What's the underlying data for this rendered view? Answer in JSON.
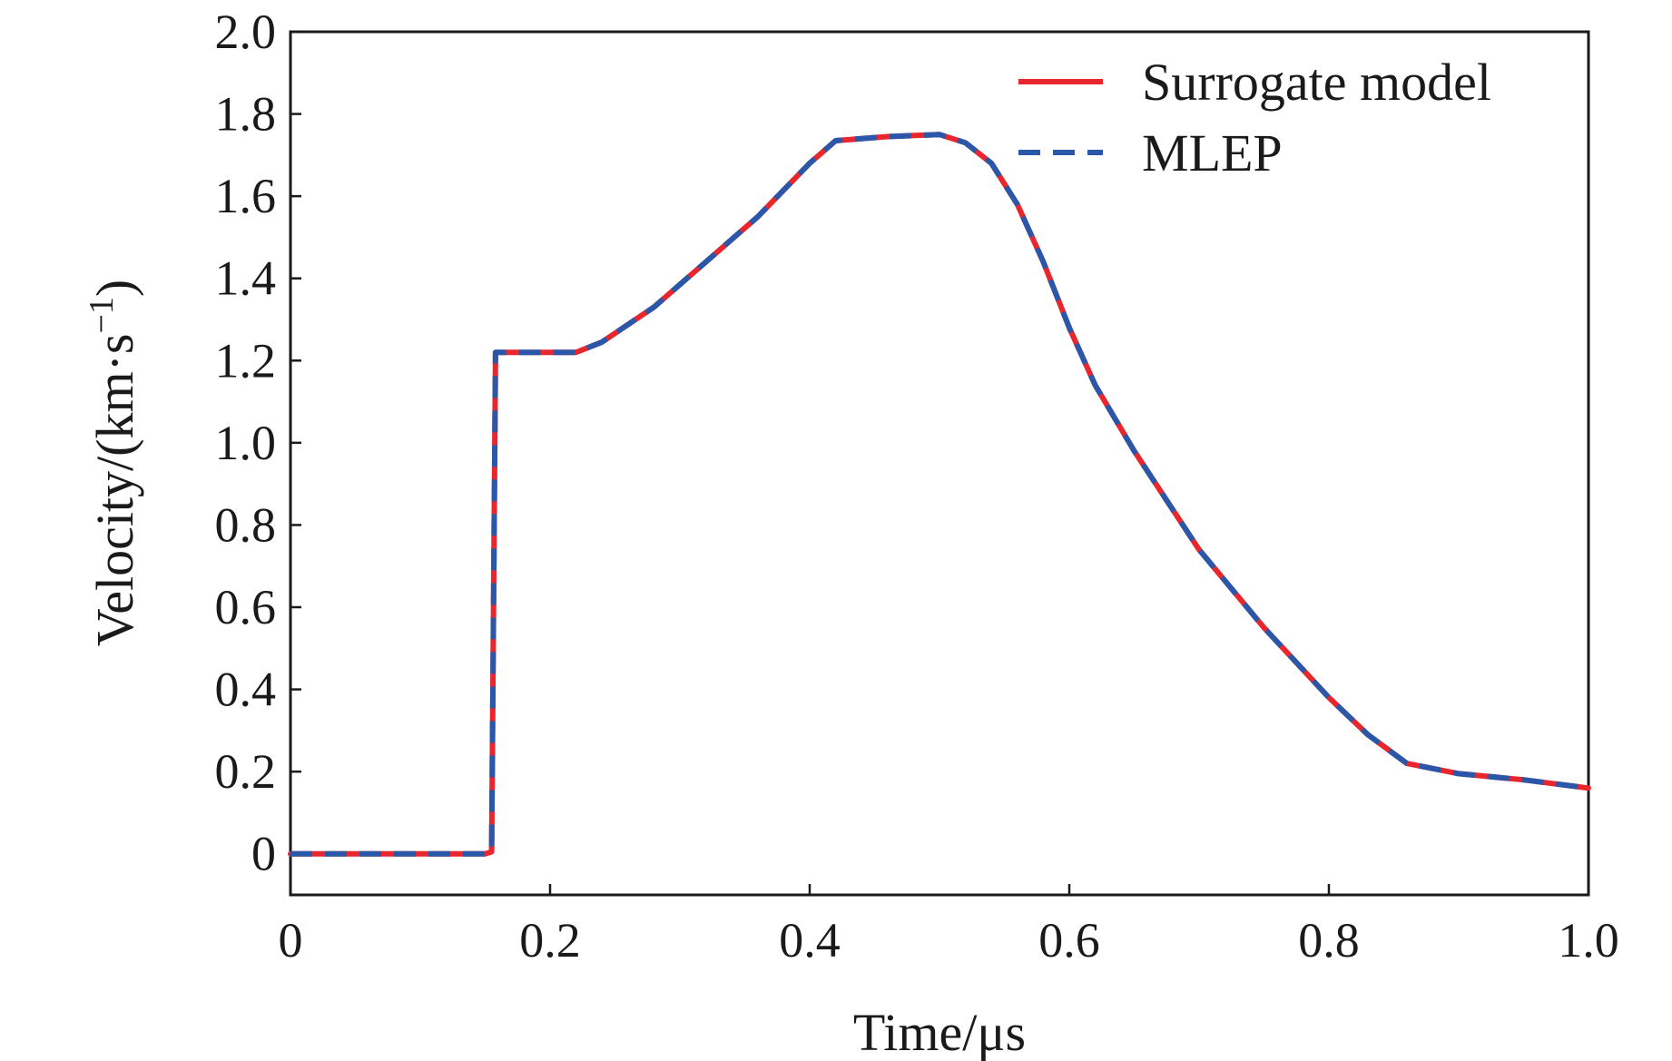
{
  "chart_data": {
    "type": "line",
    "title": "",
    "xlabel": "Time/μs",
    "ylabel": "Velocity/(km·s",
    "ylabel_sup": "−1",
    "ylabel_close": ")",
    "xlim": [
      0,
      1.0
    ],
    "ylim": [
      -0.1,
      2.0
    ],
    "xticks": [
      0,
      0.2,
      0.4,
      0.6,
      0.8,
      1.0
    ],
    "xtick_labels": [
      "0",
      "0.2",
      "0.4",
      "0.6",
      "0.8",
      "1.0"
    ],
    "yticks": [
      0,
      0.2,
      0.4,
      0.6,
      0.8,
      1.0,
      1.2,
      1.4,
      1.6,
      1.8,
      2.0
    ],
    "ytick_labels": [
      "0",
      "0.2",
      "0.4",
      "0.6",
      "0.8",
      "1.0",
      "1.2",
      "1.4",
      "1.6",
      "1.8",
      "2.0"
    ],
    "grid": false,
    "legend_position": "top-right",
    "series": [
      {
        "name": "Surrogate model",
        "color": "#e8262d",
        "style": "solid",
        "points": [
          [
            0,
            0
          ],
          [
            0.15,
            0
          ],
          [
            0.155,
            0.005
          ],
          [
            0.158,
            1.22
          ],
          [
            0.22,
            1.22
          ],
          [
            0.24,
            1.245
          ],
          [
            0.28,
            1.33
          ],
          [
            0.32,
            1.44
          ],
          [
            0.36,
            1.55
          ],
          [
            0.4,
            1.68
          ],
          [
            0.42,
            1.735
          ],
          [
            0.46,
            1.745
          ],
          [
            0.5,
            1.75
          ],
          [
            0.52,
            1.73
          ],
          [
            0.54,
            1.68
          ],
          [
            0.56,
            1.58
          ],
          [
            0.58,
            1.44
          ],
          [
            0.6,
            1.28
          ],
          [
            0.62,
            1.14
          ],
          [
            0.65,
            0.98
          ],
          [
            0.7,
            0.74
          ],
          [
            0.75,
            0.55
          ],
          [
            0.8,
            0.38
          ],
          [
            0.83,
            0.29
          ],
          [
            0.86,
            0.22
          ],
          [
            0.9,
            0.195
          ],
          [
            0.95,
            0.18
          ],
          [
            1.0,
            0.16
          ]
        ]
      },
      {
        "name": "MLEP",
        "color": "#2b57a8",
        "style": "dashed",
        "points": [
          [
            0,
            0
          ],
          [
            0.15,
            0
          ],
          [
            0.155,
            0.005
          ],
          [
            0.158,
            1.22
          ],
          [
            0.22,
            1.22
          ],
          [
            0.24,
            1.245
          ],
          [
            0.28,
            1.33
          ],
          [
            0.32,
            1.44
          ],
          [
            0.36,
            1.55
          ],
          [
            0.4,
            1.68
          ],
          [
            0.42,
            1.735
          ],
          [
            0.46,
            1.745
          ],
          [
            0.5,
            1.75
          ],
          [
            0.52,
            1.73
          ],
          [
            0.54,
            1.68
          ],
          [
            0.56,
            1.58
          ],
          [
            0.58,
            1.44
          ],
          [
            0.6,
            1.28
          ],
          [
            0.62,
            1.14
          ],
          [
            0.65,
            0.98
          ],
          [
            0.7,
            0.74
          ],
          [
            0.75,
            0.55
          ],
          [
            0.8,
            0.38
          ],
          [
            0.83,
            0.29
          ],
          [
            0.86,
            0.22
          ],
          [
            0.9,
            0.195
          ],
          [
            0.95,
            0.18
          ],
          [
            1.0,
            0.16
          ]
        ]
      }
    ]
  }
}
